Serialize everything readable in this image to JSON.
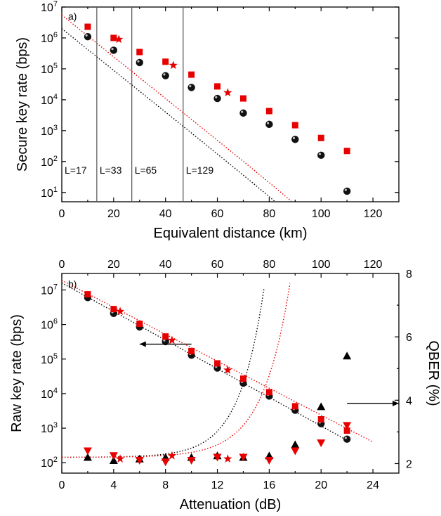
{
  "colors": {
    "black_series": "#000000",
    "red_series": "#e60000",
    "divider": "#555555"
  },
  "chart_data": [
    {
      "type": "scatter",
      "panel_label": "a)",
      "xlabel": "Equivalent distance (km)",
      "ylabel": "Secure key rate (bps)",
      "xlim": [
        0,
        130
      ],
      "ylim": [
        5,
        10000000
      ],
      "yscale": "log",
      "x_ticks": [
        "0",
        "20",
        "40",
        "60",
        "80",
        "100",
        "120"
      ],
      "y_ticks": [
        "10^1",
        "10^2",
        "10^3",
        "10^4",
        "10^5",
        "10^6",
        "10^7"
      ],
      "regions": [
        {
          "label": "L=17",
          "x_start": 0,
          "x_end": 13.5
        },
        {
          "label": "L=33",
          "x_start": 13.5,
          "x_end": 27
        },
        {
          "label": "L=65",
          "x_start": 27,
          "x_end": 46.8
        },
        {
          "label": "L=129",
          "x_start": 46.8,
          "x_end": 130
        }
      ],
      "series": [
        {
          "marker": "sphere",
          "color": "#000000",
          "x": [
            10,
            20,
            30,
            40,
            50,
            60,
            70,
            80,
            90,
            100,
            110
          ],
          "y": [
            1100000,
            400000,
            160000,
            60000,
            25000,
            11000,
            3700,
            1600,
            520,
            160,
            11
          ]
        },
        {
          "marker": "square",
          "color": "#e60000",
          "x": [
            10,
            20,
            30,
            40,
            50,
            60,
            70,
            80,
            90,
            100,
            110
          ],
          "y": [
            2300000,
            1000000,
            350000,
            170000,
            65000,
            27000,
            11000,
            4300,
            1500,
            580,
            220
          ]
        },
        {
          "marker": "star",
          "color": "#e60000",
          "x": [
            22,
            43,
            64
          ],
          "y": [
            900000,
            130000,
            17000
          ]
        }
      ],
      "fits": [
        {
          "color": "#000000",
          "style": "dotted",
          "from_x": 0,
          "to_x": 112,
          "y0": 2000000,
          "slope_per_km": -0.0675,
          "cutoff_x": 121
        },
        {
          "color": "#e60000",
          "style": "dotted",
          "from_x": 0,
          "to_x": 120,
          "y0": 5500000,
          "slope_per_km": -0.0675,
          "cutoff_x": 130
        }
      ]
    },
    {
      "type": "scatter",
      "panel_label": "b)",
      "xlabel": "Attenuation (dB)",
      "ylabel": "Raw key rate (bps)",
      "y2label": "QBER (%)",
      "xlim": [
        0,
        26
      ],
      "top_xlim": [
        0,
        130
      ],
      "ylim": [
        50,
        30000000
      ],
      "yscale": "log",
      "y2lim": [
        1.7,
        8
      ],
      "x_ticks": [
        "0",
        "4",
        "8",
        "12",
        "16",
        "20",
        "24"
      ],
      "top_x_ticks": [
        "0",
        "20",
        "40",
        "60",
        "80",
        "100",
        "120"
      ],
      "y_ticks": [
        "10^2",
        "10^3",
        "10^4",
        "10^5",
        "10^6",
        "10^7"
      ],
      "y2_ticks": [
        "2",
        "4",
        "6",
        "8"
      ],
      "series": [
        {
          "marker": "sphere",
          "color": "#000000",
          "axis": "left",
          "x": [
            2,
            4,
            6,
            8,
            10,
            12,
            14,
            16,
            18,
            20,
            22
          ],
          "y": [
            6000000,
            2100000,
            850000,
            320000,
            130000,
            55000,
            20000,
            8500,
            3300,
            1350,
            480
          ]
        },
        {
          "marker": "square",
          "color": "#e60000",
          "axis": "left",
          "x": [
            2,
            4,
            6,
            8,
            10,
            12,
            14,
            16,
            18,
            20,
            22
          ],
          "y": [
            7500000,
            2800000,
            1050000,
            450000,
            170000,
            75000,
            27000,
            11000,
            4300,
            1800,
            850
          ]
        },
        {
          "marker": "star",
          "color": "#e60000",
          "axis": "left",
          "x": [
            4.5,
            8.5,
            12.8
          ],
          "y": [
            2400000,
            350000,
            48000
          ]
        },
        {
          "marker": "triangle-up",
          "color": "#000000",
          "axis": "right",
          "x": [
            2,
            4,
            6,
            8,
            10,
            12,
            14,
            16,
            18,
            20,
            22
          ],
          "y": [
            2.2,
            2.1,
            2.15,
            2.2,
            2.2,
            2.25,
            2.2,
            2.25,
            2.6,
            3.8,
            5.4
          ]
        },
        {
          "marker": "triangle-down",
          "color": "#e60000",
          "axis": "right",
          "x": [
            2,
            4,
            6,
            8,
            10,
            12,
            14,
            16,
            18,
            20,
            22
          ],
          "y": [
            2.4,
            2.25,
            2.1,
            2.05,
            2.1,
            2.2,
            2.2,
            2.1,
            2.4,
            2.65,
            3.2
          ]
        },
        {
          "marker": "star",
          "color": "#e60000",
          "axis": "right",
          "x": [
            4.5,
            8.5,
            12.8
          ],
          "y": [
            2.15,
            2.25,
            2.15
          ]
        }
      ],
      "fits": [
        {
          "color": "#000000",
          "style": "dotted",
          "axis": "left",
          "type": "log-linear",
          "from_x": 0,
          "to_x": 22,
          "y0": 16000000,
          "slope_per_dB": -0.207
        },
        {
          "color": "#e60000",
          "style": "dotted",
          "axis": "left",
          "type": "log-linear",
          "from_x": 0,
          "to_x": 24,
          "y0": 19000000,
          "slope_per_dB": -0.195
        },
        {
          "color": "#000000",
          "style": "dotted",
          "axis": "right",
          "type": "exp",
          "from_x": 0,
          "to_x": 22.3,
          "base": 2.2,
          "amp": 0.0016,
          "rate": 0.52
        },
        {
          "color": "#e60000",
          "style": "dotted",
          "axis": "right",
          "type": "exp",
          "from_x": 0,
          "to_x": 24,
          "base": 2.2,
          "amp": 0.0014,
          "rate": 0.47
        }
      ],
      "arrows": [
        {
          "direction": "left",
          "axis": "left",
          "from_x": 10,
          "to_x": 6,
          "y": 270000
        },
        {
          "direction": "right",
          "axis": "right",
          "from_x": 22,
          "to_x": 26,
          "y": 3.9
        }
      ]
    }
  ]
}
